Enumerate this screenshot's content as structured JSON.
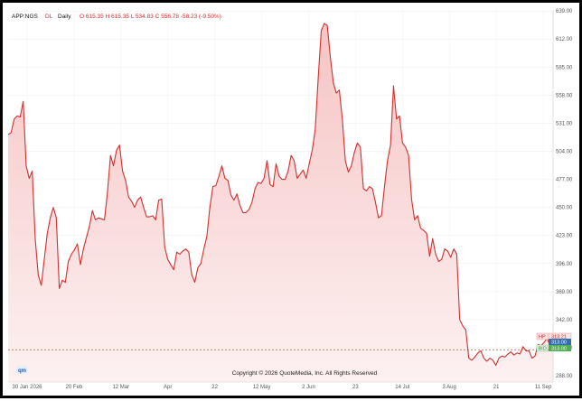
{
  "header": {
    "symbol": "APP:NGS",
    "dl": "DL",
    "interval": "Daily",
    "ohlc": "O 615.35  H 615.35  L 534.83  C 556.78 -58.23 (-9.50%)"
  },
  "copyright": "Copyright © 2026 QuoteMedia, Inc. All Rights Reserved",
  "logo": "qm",
  "tags": {
    "hp": {
      "label": "HP",
      "value": "313.21"
    },
    "bp": {
      "label": "BP",
      "value": "313.00"
    },
    "bid": {
      "label": "BID",
      "value": "313.00"
    }
  },
  "colors": {
    "line": "#d32f2f",
    "fill_top": "#f6c4c4",
    "fill_bottom": "#fdf1f1",
    "reference": "#b07a50",
    "bp_tag": "#2c6fb5",
    "bid_tag": "#4caf50"
  },
  "chart_data": {
    "type": "area",
    "x_ticks": [
      "30 Jan 2026",
      "20 Feb",
      "12 Mar",
      "Apr",
      "22",
      "12 May",
      "2 Jun",
      "23",
      "14 Jul",
      "3 Aug",
      "21",
      "11 Sep"
    ],
    "y_ticks": [
      288.0,
      315.0,
      342.0,
      369.0,
      396.0,
      423.0,
      450.0,
      477.0,
      504.0,
      531.0,
      558.0,
      585.0,
      612.0,
      639.0
    ],
    "ylim": [
      282,
      640
    ],
    "reference_value": 313.0,
    "series": [
      {
        "values": [
          520,
          522,
          535,
          538,
          537,
          552,
          490,
          478,
          485,
          420,
          385,
          375,
          400,
          425,
          440,
          450,
          440,
          372,
          380,
          378,
          398,
          405,
          409,
          415,
          395,
          410,
          421,
          432,
          447,
          438,
          440,
          439,
          438,
          465,
          500,
          490,
          505,
          510,
          485,
          476,
          460,
          456,
          450,
          457,
          460,
          450,
          441,
          441,
          442,
          438,
          457,
          458,
          412,
          400,
          395,
          390,
          407,
          405,
          408,
          410,
          407,
          385,
          378,
          392,
          396,
          410,
          422,
          450,
          470,
          471,
          480,
          490,
          478,
          476,
          462,
          457,
          463,
          452,
          445,
          445,
          448,
          455,
          468,
          474,
          473,
          478,
          495,
          472,
          470,
          492,
          480,
          477,
          477,
          485,
          500,
          495,
          478,
          482,
          486,
          478,
          492,
          505,
          525,
          575,
          620,
          627,
          625,
          595,
          570,
          560,
          563,
          535,
          495,
          484,
          490,
          503,
          512,
          508,
          468,
          466,
          470,
          468,
          455,
          440,
          442,
          470,
          495,
          510,
          567,
          535,
          538,
          512,
          508,
          500,
          458,
          438,
          442,
          430,
          428,
          425,
          403,
          420,
          405,
          398,
          400,
          410,
          408,
          402,
          410,
          405,
          342,
          336,
          332,
          305,
          303,
          306,
          310,
          312,
          305,
          302,
          305,
          303,
          298,
          305,
          307,
          306,
          309,
          311,
          308,
          310,
          309,
          316,
          312,
          312,
          305,
          307,
          318,
          317,
          320,
          324,
          317,
          313
        ]
      }
    ]
  }
}
